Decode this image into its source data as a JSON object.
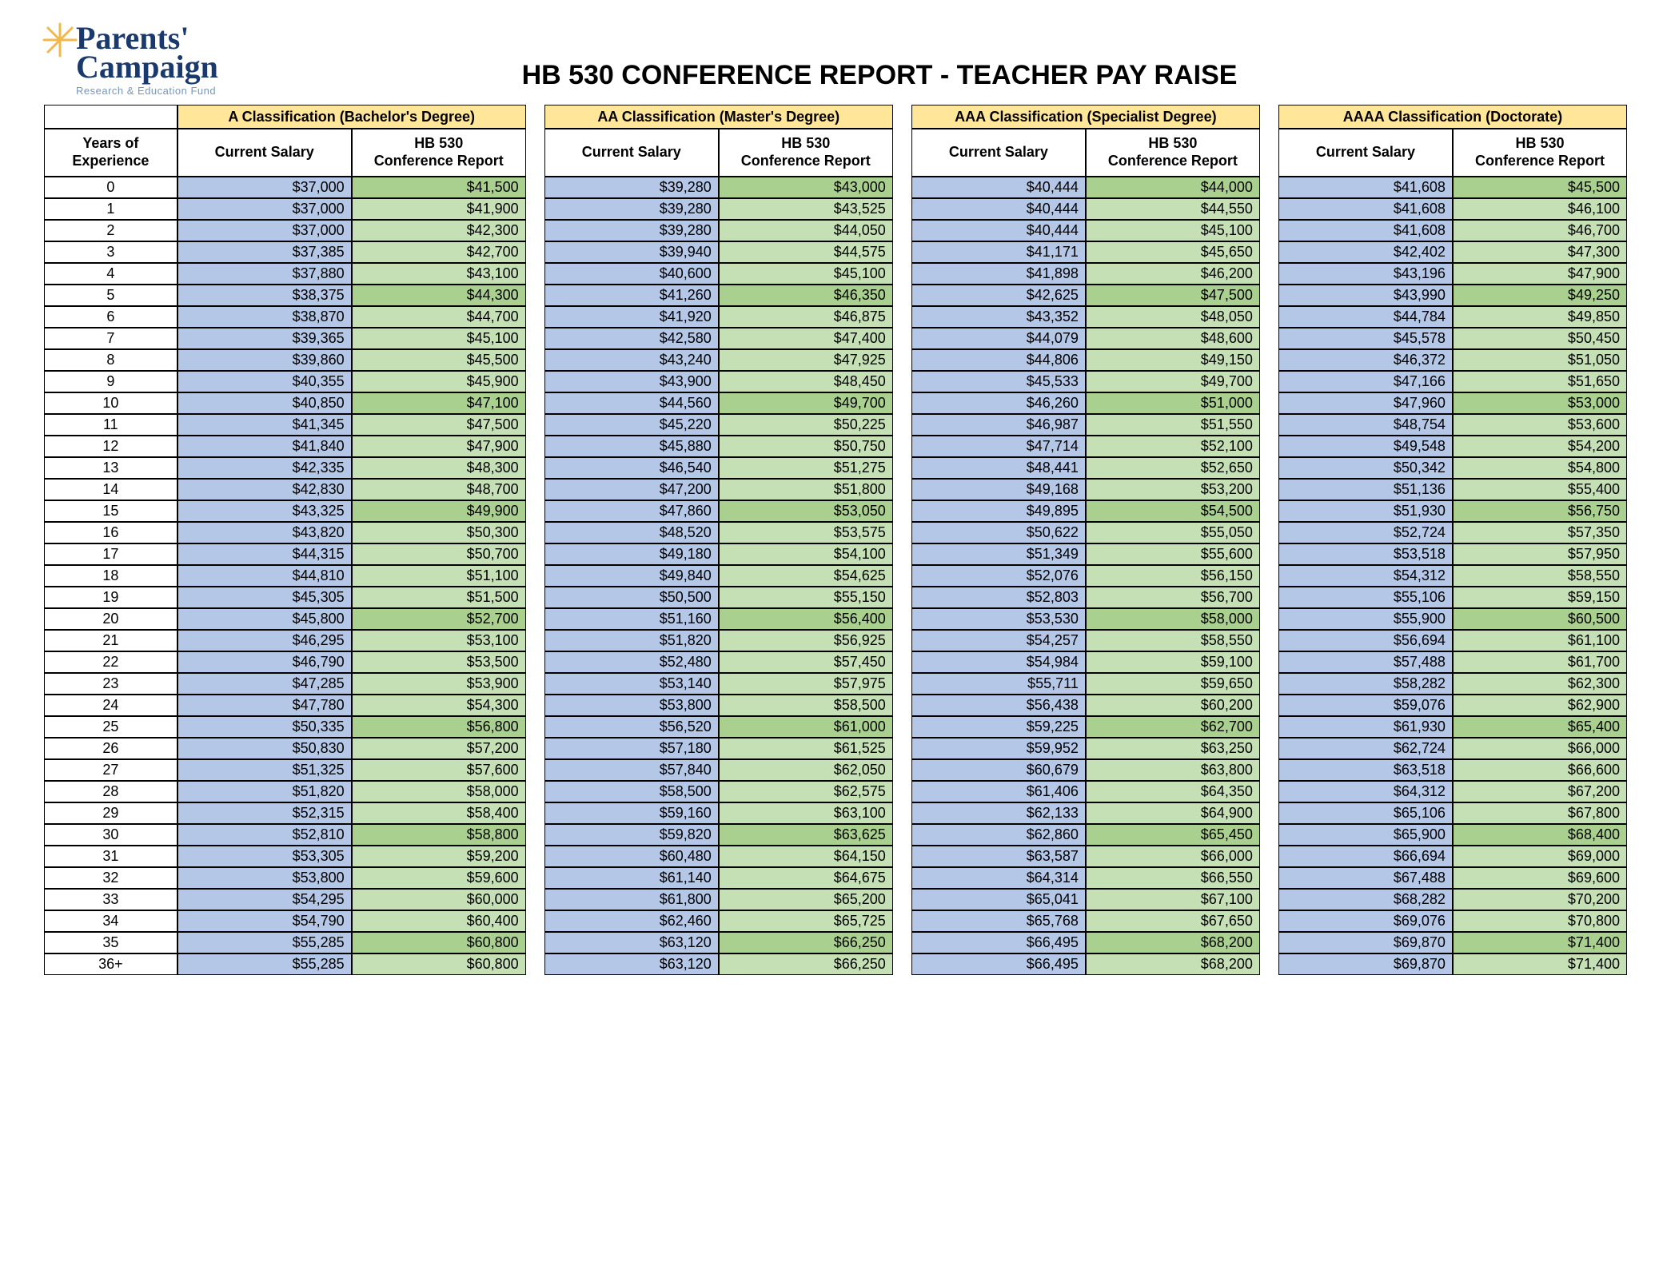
{
  "logo": {
    "line1": "Parents'",
    "line2": "Campaign",
    "tagline": "Research & Education Fund"
  },
  "title": "HB 530 CONFERENCE REPORT -  TEACHER PAY RAISE",
  "colors": {
    "class_head_bg": "#ffe699",
    "current_bg": "#b4c7e7",
    "hb_bg": "#c5e0b4",
    "hb_bg_highlight": "#a9d08e",
    "border": "#000000"
  },
  "header_labels": {
    "years": "Years of Experience",
    "current": "Current Salary",
    "hb_line1": "HB 530",
    "hb_line2": "Conference Report"
  },
  "classifications": [
    "A Classification  (Bachelor's Degree)",
    "AA Classification (Master's Degree)",
    "AAA Classification (Specialist Degree)",
    "AAAA Classification (Doctorate)"
  ],
  "highlight_rows": [
    0,
    5,
    10,
    15,
    20,
    25,
    30,
    35
  ],
  "rows": [
    {
      "exp": "0",
      "v": [
        "$37,000",
        "$41,500",
        "$39,280",
        "$43,000",
        "$40,444",
        "$44,000",
        "$41,608",
        "$45,500"
      ]
    },
    {
      "exp": "1",
      "v": [
        "$37,000",
        "$41,900",
        "$39,280",
        "$43,525",
        "$40,444",
        "$44,550",
        "$41,608",
        "$46,100"
      ]
    },
    {
      "exp": "2",
      "v": [
        "$37,000",
        "$42,300",
        "$39,280",
        "$44,050",
        "$40,444",
        "$45,100",
        "$41,608",
        "$46,700"
      ]
    },
    {
      "exp": "3",
      "v": [
        "$37,385",
        "$42,700",
        "$39,940",
        "$44,575",
        "$41,171",
        "$45,650",
        "$42,402",
        "$47,300"
      ]
    },
    {
      "exp": "4",
      "v": [
        "$37,880",
        "$43,100",
        "$40,600",
        "$45,100",
        "$41,898",
        "$46,200",
        "$43,196",
        "$47,900"
      ]
    },
    {
      "exp": "5",
      "v": [
        "$38,375",
        "$44,300",
        "$41,260",
        "$46,350",
        "$42,625",
        "$47,500",
        "$43,990",
        "$49,250"
      ]
    },
    {
      "exp": "6",
      "v": [
        "$38,870",
        "$44,700",
        "$41,920",
        "$46,875",
        "$43,352",
        "$48,050",
        "$44,784",
        "$49,850"
      ]
    },
    {
      "exp": "7",
      "v": [
        "$39,365",
        "$45,100",
        "$42,580",
        "$47,400",
        "$44,079",
        "$48,600",
        "$45,578",
        "$50,450"
      ]
    },
    {
      "exp": "8",
      "v": [
        "$39,860",
        "$45,500",
        "$43,240",
        "$47,925",
        "$44,806",
        "$49,150",
        "$46,372",
        "$51,050"
      ]
    },
    {
      "exp": "9",
      "v": [
        "$40,355",
        "$45,900",
        "$43,900",
        "$48,450",
        "$45,533",
        "$49,700",
        "$47,166",
        "$51,650"
      ]
    },
    {
      "exp": "10",
      "v": [
        "$40,850",
        "$47,100",
        "$44,560",
        "$49,700",
        "$46,260",
        "$51,000",
        "$47,960",
        "$53,000"
      ]
    },
    {
      "exp": "11",
      "v": [
        "$41,345",
        "$47,500",
        "$45,220",
        "$50,225",
        "$46,987",
        "$51,550",
        "$48,754",
        "$53,600"
      ]
    },
    {
      "exp": "12",
      "v": [
        "$41,840",
        "$47,900",
        "$45,880",
        "$50,750",
        "$47,714",
        "$52,100",
        "$49,548",
        "$54,200"
      ]
    },
    {
      "exp": "13",
      "v": [
        "$42,335",
        "$48,300",
        "$46,540",
        "$51,275",
        "$48,441",
        "$52,650",
        "$50,342",
        "$54,800"
      ]
    },
    {
      "exp": "14",
      "v": [
        "$42,830",
        "$48,700",
        "$47,200",
        "$51,800",
        "$49,168",
        "$53,200",
        "$51,136",
        "$55,400"
      ]
    },
    {
      "exp": "15",
      "v": [
        "$43,325",
        "$49,900",
        "$47,860",
        "$53,050",
        "$49,895",
        "$54,500",
        "$51,930",
        "$56,750"
      ]
    },
    {
      "exp": "16",
      "v": [
        "$43,820",
        "$50,300",
        "$48,520",
        "$53,575",
        "$50,622",
        "$55,050",
        "$52,724",
        "$57,350"
      ]
    },
    {
      "exp": "17",
      "v": [
        "$44,315",
        "$50,700",
        "$49,180",
        "$54,100",
        "$51,349",
        "$55,600",
        "$53,518",
        "$57,950"
      ]
    },
    {
      "exp": "18",
      "v": [
        "$44,810",
        "$51,100",
        "$49,840",
        "$54,625",
        "$52,076",
        "$56,150",
        "$54,312",
        "$58,550"
      ]
    },
    {
      "exp": "19",
      "v": [
        "$45,305",
        "$51,500",
        "$50,500",
        "$55,150",
        "$52,803",
        "$56,700",
        "$55,106",
        "$59,150"
      ]
    },
    {
      "exp": "20",
      "v": [
        "$45,800",
        "$52,700",
        "$51,160",
        "$56,400",
        "$53,530",
        "$58,000",
        "$55,900",
        "$60,500"
      ]
    },
    {
      "exp": "21",
      "v": [
        "$46,295",
        "$53,100",
        "$51,820",
        "$56,925",
        "$54,257",
        "$58,550",
        "$56,694",
        "$61,100"
      ]
    },
    {
      "exp": "22",
      "v": [
        "$46,790",
        "$53,500",
        "$52,480",
        "$57,450",
        "$54,984",
        "$59,100",
        "$57,488",
        "$61,700"
      ]
    },
    {
      "exp": "23",
      "v": [
        "$47,285",
        "$53,900",
        "$53,140",
        "$57,975",
        "$55,711",
        "$59,650",
        "$58,282",
        "$62,300"
      ]
    },
    {
      "exp": "24",
      "v": [
        "$47,780",
        "$54,300",
        "$53,800",
        "$58,500",
        "$56,438",
        "$60,200",
        "$59,076",
        "$62,900"
      ]
    },
    {
      "exp": "25",
      "v": [
        "$50,335",
        "$56,800",
        "$56,520",
        "$61,000",
        "$59,225",
        "$62,700",
        "$61,930",
        "$65,400"
      ]
    },
    {
      "exp": "26",
      "v": [
        "$50,830",
        "$57,200",
        "$57,180",
        "$61,525",
        "$59,952",
        "$63,250",
        "$62,724",
        "$66,000"
      ]
    },
    {
      "exp": "27",
      "v": [
        "$51,325",
        "$57,600",
        "$57,840",
        "$62,050",
        "$60,679",
        "$63,800",
        "$63,518",
        "$66,600"
      ]
    },
    {
      "exp": "28",
      "v": [
        "$51,820",
        "$58,000",
        "$58,500",
        "$62,575",
        "$61,406",
        "$64,350",
        "$64,312",
        "$67,200"
      ]
    },
    {
      "exp": "29",
      "v": [
        "$52,315",
        "$58,400",
        "$59,160",
        "$63,100",
        "$62,133",
        "$64,900",
        "$65,106",
        "$67,800"
      ]
    },
    {
      "exp": "30",
      "v": [
        "$52,810",
        "$58,800",
        "$59,820",
        "$63,625",
        "$62,860",
        "$65,450",
        "$65,900",
        "$68,400"
      ]
    },
    {
      "exp": "31",
      "v": [
        "$53,305",
        "$59,200",
        "$60,480",
        "$64,150",
        "$63,587",
        "$66,000",
        "$66,694",
        "$69,000"
      ]
    },
    {
      "exp": "32",
      "v": [
        "$53,800",
        "$59,600",
        "$61,140",
        "$64,675",
        "$64,314",
        "$66,550",
        "$67,488",
        "$69,600"
      ]
    },
    {
      "exp": "33",
      "v": [
        "$54,295",
        "$60,000",
        "$61,800",
        "$65,200",
        "$65,041",
        "$67,100",
        "$68,282",
        "$70,200"
      ]
    },
    {
      "exp": "34",
      "v": [
        "$54,790",
        "$60,400",
        "$62,460",
        "$65,725",
        "$65,768",
        "$67,650",
        "$69,076",
        "$70,800"
      ]
    },
    {
      "exp": "35",
      "v": [
        "$55,285",
        "$60,800",
        "$63,120",
        "$66,250",
        "$66,495",
        "$68,200",
        "$69,870",
        "$71,400"
      ]
    },
    {
      "exp": "36+",
      "v": [
        "$55,285",
        "$60,800",
        "$63,120",
        "$66,250",
        "$66,495",
        "$68,200",
        "$69,870",
        "$71,400"
      ]
    }
  ]
}
